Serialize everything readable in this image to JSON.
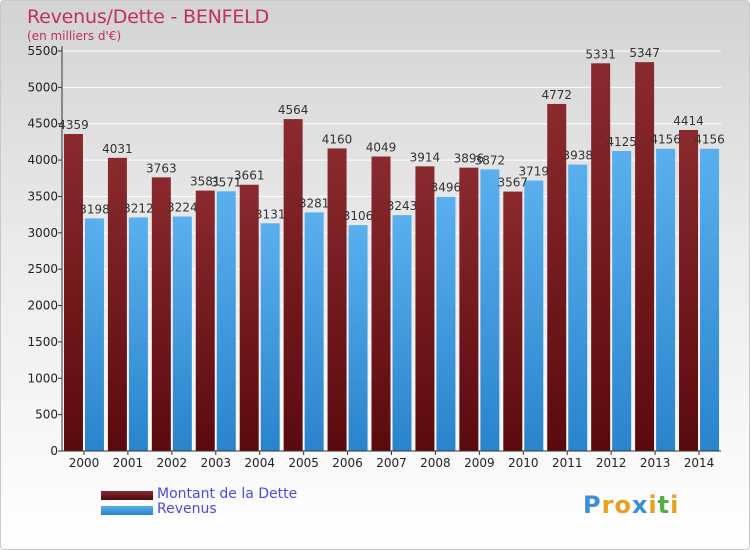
{
  "title": "Revenus/Dette - BENFELD",
  "subtitle": "(en milliers d'€)",
  "logo": {
    "text": "Proxiti",
    "letters": [
      {
        "ch": "P",
        "color": "#3a8fd8"
      },
      {
        "ch": "r",
        "color": "#e8a020"
      },
      {
        "ch": "o",
        "color": "#e8a020"
      },
      {
        "ch": "x",
        "color": "#3a8fd8"
      },
      {
        "ch": "i",
        "color": "#e8a020"
      },
      {
        "ch": "t",
        "color": "#50b040"
      },
      {
        "ch": "i",
        "color": "#e8a020"
      }
    ]
  },
  "colors": {
    "dette": "#7a1e22",
    "revenus": "#3d9be0",
    "axis": "#333333"
  },
  "chart_data": {
    "type": "bar",
    "categories": [
      "2000",
      "2001",
      "2002",
      "2003",
      "2004",
      "2005",
      "2006",
      "2007",
      "2008",
      "2009",
      "2010",
      "2011",
      "2012",
      "2013",
      "2014"
    ],
    "series": [
      {
        "name": "Montant de la Dette",
        "values": [
          4359,
          4031,
          3763,
          3581,
          3661,
          4564,
          4160,
          4049,
          3914,
          3896,
          3567,
          4772,
          5331,
          5347,
          4414
        ]
      },
      {
        "name": "Revenus",
        "values": [
          3198,
          3212,
          3224,
          3571,
          3131,
          3281,
          3106,
          3243,
          3496,
          3872,
          3719,
          3938,
          4125,
          4156,
          4156
        ]
      }
    ],
    "ylim": [
      0,
      5500
    ],
    "yticks": [
      0,
      500,
      1000,
      1500,
      2000,
      2500,
      3000,
      3500,
      4000,
      4500,
      5000,
      5500
    ],
    "title": "Revenus/Dette - BENFELD",
    "ylabel": "(en milliers d'€)",
    "legend": "bottom-left",
    "grid": true
  }
}
